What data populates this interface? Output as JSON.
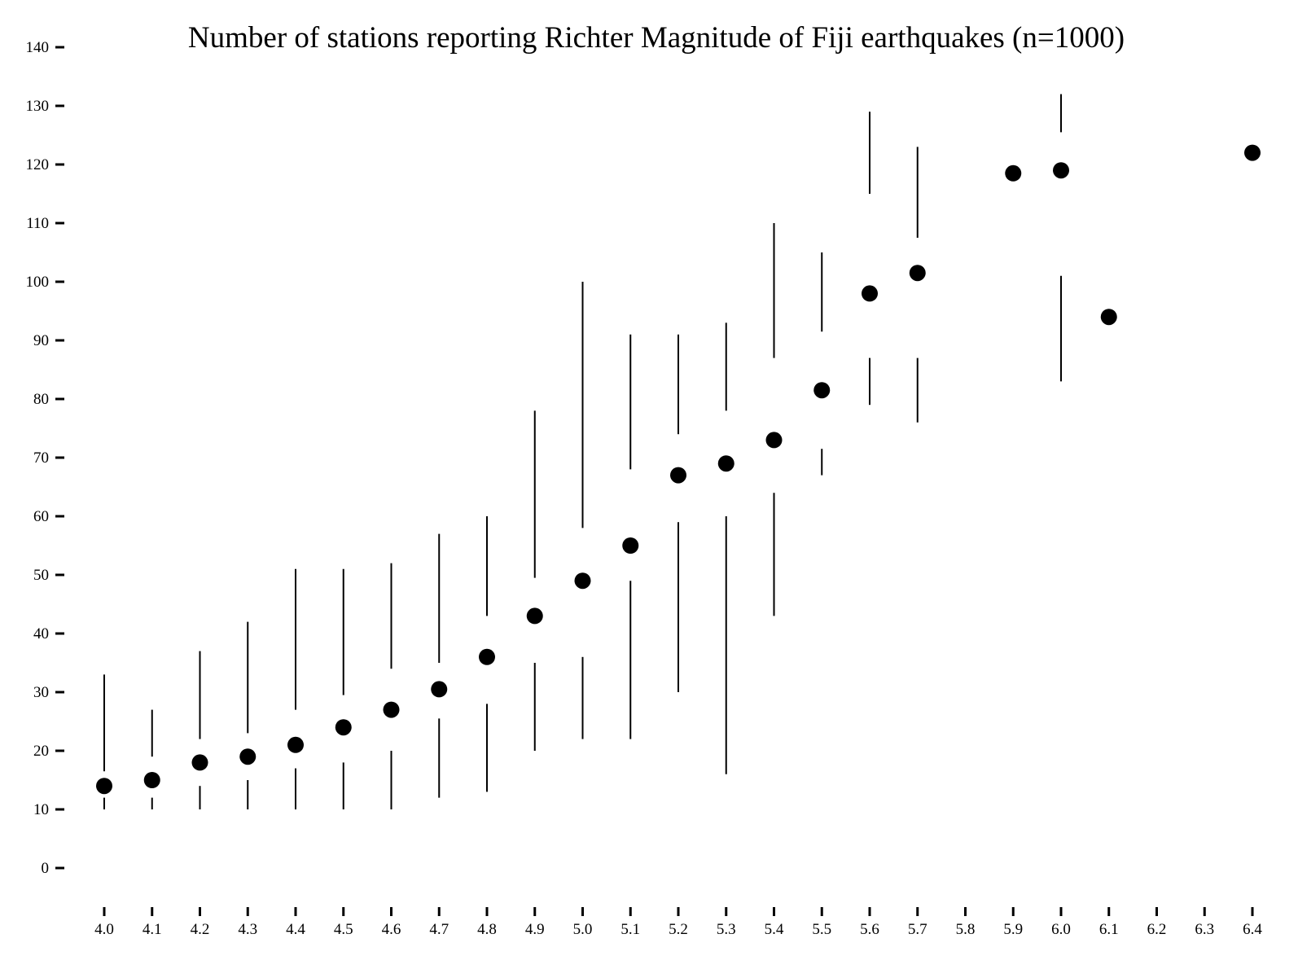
{
  "chart_data": {
    "type": "scatter",
    "title": "Number of stations reporting Richter Magnitude of Fiji earthquakes (n=1000)",
    "xlabel": "",
    "ylabel": "",
    "grid": false,
    "xlim": [
      4.0,
      6.4
    ],
    "ylim": [
      -5,
      145
    ],
    "x_ticks": [
      "4.0",
      "4.1",
      "4.2",
      "4.3",
      "4.4",
      "4.5",
      "4.6",
      "4.7",
      "4.8",
      "4.9",
      "5.0",
      "5.1",
      "5.2",
      "5.3",
      "5.4",
      "5.5",
      "5.6",
      "5.7",
      "5.8",
      "5.9",
      "6.0",
      "6.1",
      "6.2",
      "6.3",
      "6.4"
    ],
    "y_ticks": [
      "0",
      "10",
      "20",
      "30",
      "40",
      "50",
      "60",
      "70",
      "80",
      "90",
      "100",
      "110",
      "120",
      "130",
      "140"
    ],
    "points": [
      {
        "x": 4.0,
        "median": 14,
        "whiskers": [
          [
            10,
            12
          ],
          [
            16.5,
            33
          ]
        ]
      },
      {
        "x": 4.1,
        "median": 15,
        "whiskers": [
          [
            10,
            12
          ],
          [
            19,
            27
          ]
        ]
      },
      {
        "x": 4.2,
        "median": 18,
        "whiskers": [
          [
            10,
            14
          ],
          [
            22,
            37
          ]
        ]
      },
      {
        "x": 4.3,
        "median": 19,
        "whiskers": [
          [
            10,
            15
          ],
          [
            23,
            42
          ]
        ]
      },
      {
        "x": 4.4,
        "median": 21,
        "whiskers": [
          [
            10,
            17
          ],
          [
            27,
            51
          ]
        ]
      },
      {
        "x": 4.5,
        "median": 24,
        "whiskers": [
          [
            10,
            18
          ],
          [
            29.5,
            51
          ]
        ]
      },
      {
        "x": 4.6,
        "median": 27,
        "whiskers": [
          [
            10,
            20
          ],
          [
            34,
            52
          ]
        ]
      },
      {
        "x": 4.7,
        "median": 30.5,
        "whiskers": [
          [
            12,
            25.5
          ],
          [
            35,
            57
          ]
        ]
      },
      {
        "x": 4.8,
        "median": 36,
        "whiskers": [
          [
            13,
            28
          ],
          [
            43,
            60
          ]
        ]
      },
      {
        "x": 4.9,
        "median": 43,
        "whiskers": [
          [
            20,
            35
          ],
          [
            49.5,
            78
          ]
        ]
      },
      {
        "x": 5.0,
        "median": 49,
        "whiskers": [
          [
            22,
            36
          ],
          [
            58,
            100
          ]
        ]
      },
      {
        "x": 5.1,
        "median": 55,
        "whiskers": [
          [
            22,
            49
          ],
          [
            68,
            91
          ]
        ]
      },
      {
        "x": 5.2,
        "median": 67,
        "whiskers": [
          [
            30,
            59
          ],
          [
            74,
            91
          ]
        ]
      },
      {
        "x": 5.3,
        "median": 69,
        "whiskers": [
          [
            16,
            60
          ],
          [
            78,
            93
          ]
        ]
      },
      {
        "x": 5.4,
        "median": 73,
        "whiskers": [
          [
            43,
            64
          ],
          [
            87,
            110
          ]
        ]
      },
      {
        "x": 5.5,
        "median": 81.5,
        "whiskers": [
          [
            67,
            71.5
          ],
          [
            91.5,
            105
          ]
        ]
      },
      {
        "x": 5.6,
        "median": 98,
        "whiskers": [
          [
            79,
            87
          ],
          [
            115,
            129
          ]
        ]
      },
      {
        "x": 5.7,
        "median": 101.5,
        "whiskers": [
          [
            76,
            87
          ],
          [
            107.5,
            123
          ]
        ]
      },
      {
        "x": 5.9,
        "median": 118.5,
        "whiskers": []
      },
      {
        "x": 6.0,
        "median": 119,
        "whiskers": [
          [
            83,
            101
          ],
          [
            125.5,
            132
          ]
        ]
      },
      {
        "x": 6.1,
        "median": 94,
        "whiskers": []
      },
      {
        "x": 6.4,
        "median": 122,
        "whiskers": []
      }
    ]
  }
}
